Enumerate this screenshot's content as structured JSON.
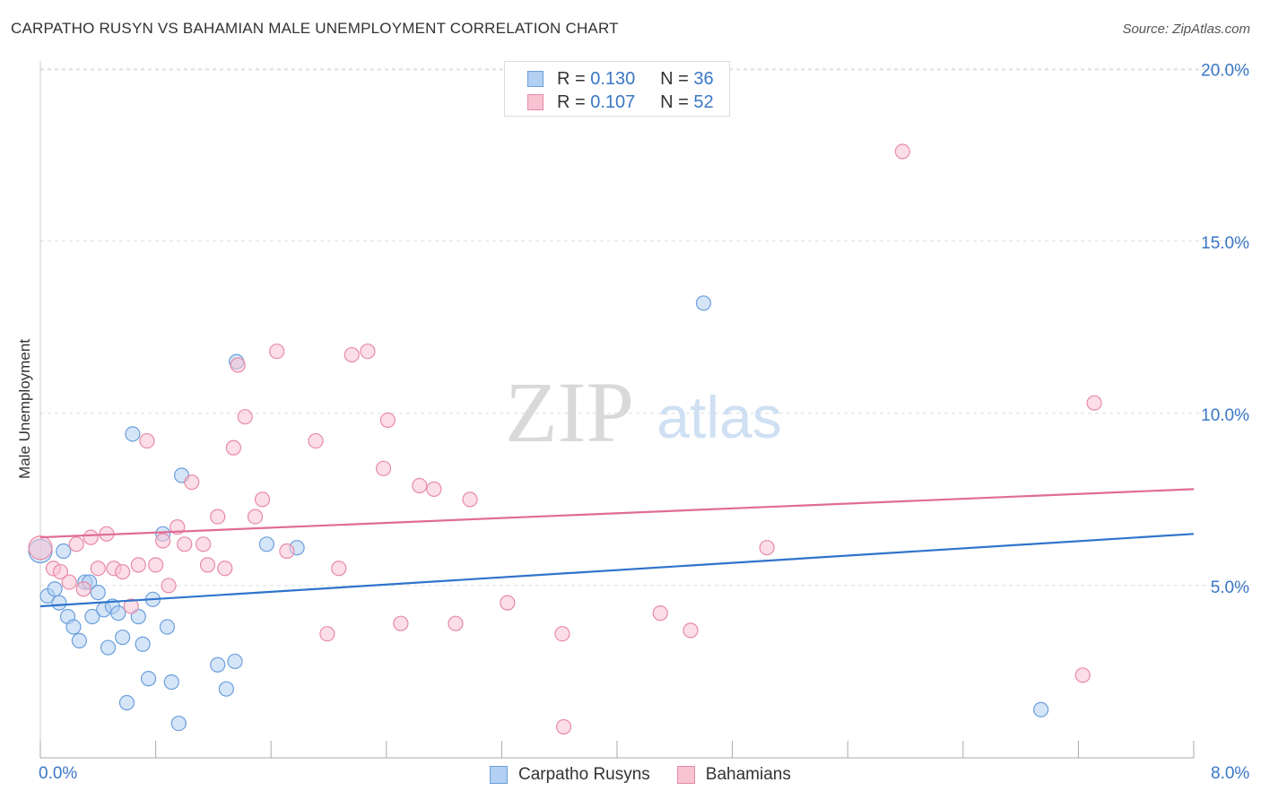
{
  "title": "CARPATHO RUSYN VS BAHAMIAN MALE UNEMPLOYMENT CORRELATION CHART",
  "source": "Source: ZipAtlas.com",
  "watermark": {
    "zip": "ZIP",
    "atlas": "atlas"
  },
  "legend_top": {
    "rows": [
      {
        "r_label": "R =",
        "r_value": "0.130",
        "n_label": "N =",
        "n_value": "36"
      },
      {
        "r_label": "R =",
        "r_value": "0.107",
        "n_label": "N =",
        "n_value": "52"
      }
    ]
  },
  "legend_bottom": [
    "Carpatho Rusyns",
    "Bahamians"
  ],
  "colors": {
    "blue_fill": "#b3cff2",
    "blue_stroke": "#6a9fdc",
    "blue_line": "#2f74cc",
    "pink_fill": "#f7c3d3",
    "pink_stroke": "#e88aa8",
    "pink_line": "#e06c96",
    "grid": "#dddddd",
    "axis_text": "#3a77c6"
  },
  "chart_data": {
    "type": "scatter",
    "title": "CARPATHO RUSYN VS BAHAMIAN MALE UNEMPLOYMENT CORRELATION CHART",
    "xlabel": "",
    "ylabel": "Male Unemployment",
    "xlim": [
      0,
      8
    ],
    "ylim": [
      0,
      20.5
    ],
    "x_tick_labels": [
      "0.0%",
      "8.0%"
    ],
    "y_ticks": [
      5,
      10,
      15,
      20
    ],
    "y_tick_labels": [
      "5.0%",
      "10.0%",
      "15.0%",
      "20.0%"
    ],
    "series": [
      {
        "name": "Carpatho Rusyns",
        "r": 0.13,
        "n": 36,
        "trend": {
          "x": [
            0,
            8
          ],
          "y": [
            4.4,
            6.5
          ]
        },
        "points": [
          {
            "x": 0.0,
            "y": 6.0,
            "big": true
          },
          {
            "x": 0.05,
            "y": 4.7
          },
          {
            "x": 0.1,
            "y": 4.9
          },
          {
            "x": 0.13,
            "y": 4.5
          },
          {
            "x": 0.16,
            "y": 6.0
          },
          {
            "x": 0.19,
            "y": 4.1
          },
          {
            "x": 0.23,
            "y": 3.8
          },
          {
            "x": 0.27,
            "y": 3.4
          },
          {
            "x": 0.31,
            "y": 5.1
          },
          {
            "x": 0.34,
            "y": 5.1
          },
          {
            "x": 0.36,
            "y": 4.1
          },
          {
            "x": 0.4,
            "y": 4.8
          },
          {
            "x": 0.44,
            "y": 4.3
          },
          {
            "x": 0.47,
            "y": 3.2
          },
          {
            "x": 0.5,
            "y": 4.4
          },
          {
            "x": 0.54,
            "y": 4.2
          },
          {
            "x": 0.57,
            "y": 3.5
          },
          {
            "x": 0.6,
            "y": 1.6
          },
          {
            "x": 0.64,
            "y": 9.4
          },
          {
            "x": 0.68,
            "y": 4.1
          },
          {
            "x": 0.71,
            "y": 3.3
          },
          {
            "x": 0.75,
            "y": 2.3
          },
          {
            "x": 0.78,
            "y": 4.6
          },
          {
            "x": 0.85,
            "y": 6.5
          },
          {
            "x": 0.88,
            "y": 3.8
          },
          {
            "x": 0.91,
            "y": 2.2
          },
          {
            "x": 0.96,
            "y": 1.0
          },
          {
            "x": 0.98,
            "y": 8.2
          },
          {
            "x": 1.23,
            "y": 2.7
          },
          {
            "x": 1.29,
            "y": 2.0
          },
          {
            "x": 1.35,
            "y": 2.8
          },
          {
            "x": 1.36,
            "y": 11.5
          },
          {
            "x": 1.57,
            "y": 6.2
          },
          {
            "x": 1.78,
            "y": 6.1
          },
          {
            "x": 4.6,
            "y": 13.2
          },
          {
            "x": 6.94,
            "y": 1.4
          }
        ]
      },
      {
        "name": "Bahamians",
        "r": 0.107,
        "n": 52,
        "trend": {
          "x": [
            0,
            8
          ],
          "y": [
            6.4,
            7.8
          ]
        },
        "points": [
          {
            "x": 0.0,
            "y": 6.1,
            "big": true
          },
          {
            "x": 0.09,
            "y": 5.5
          },
          {
            "x": 0.14,
            "y": 5.4
          },
          {
            "x": 0.2,
            "y": 5.1
          },
          {
            "x": 0.25,
            "y": 6.2
          },
          {
            "x": 0.3,
            "y": 4.9
          },
          {
            "x": 0.35,
            "y": 6.4
          },
          {
            "x": 0.4,
            "y": 5.5
          },
          {
            "x": 0.46,
            "y": 6.5
          },
          {
            "x": 0.51,
            "y": 5.5
          },
          {
            "x": 0.57,
            "y": 5.4
          },
          {
            "x": 0.63,
            "y": 4.4
          },
          {
            "x": 0.68,
            "y": 5.6
          },
          {
            "x": 0.74,
            "y": 9.2
          },
          {
            "x": 0.8,
            "y": 5.6
          },
          {
            "x": 0.85,
            "y": 6.3
          },
          {
            "x": 0.89,
            "y": 5.0
          },
          {
            "x": 0.95,
            "y": 6.7
          },
          {
            "x": 1.0,
            "y": 6.2
          },
          {
            "x": 1.05,
            "y": 8.0
          },
          {
            "x": 1.13,
            "y": 6.2
          },
          {
            "x": 1.16,
            "y": 5.6
          },
          {
            "x": 1.23,
            "y": 7.0
          },
          {
            "x": 1.28,
            "y": 5.5
          },
          {
            "x": 1.34,
            "y": 9.0
          },
          {
            "x": 1.37,
            "y": 11.4
          },
          {
            "x": 1.42,
            "y": 9.9
          },
          {
            "x": 1.49,
            "y": 7.0
          },
          {
            "x": 1.54,
            "y": 7.5
          },
          {
            "x": 1.64,
            "y": 11.8
          },
          {
            "x": 1.71,
            "y": 6.0
          },
          {
            "x": 1.91,
            "y": 9.2
          },
          {
            "x": 1.99,
            "y": 3.6
          },
          {
            "x": 2.07,
            "y": 5.5
          },
          {
            "x": 2.16,
            "y": 11.7
          },
          {
            "x": 2.27,
            "y": 11.8
          },
          {
            "x": 2.38,
            "y": 8.4
          },
          {
            "x": 2.41,
            "y": 9.8
          },
          {
            "x": 2.5,
            "y": 3.9
          },
          {
            "x": 2.63,
            "y": 7.9
          },
          {
            "x": 2.73,
            "y": 7.8
          },
          {
            "x": 2.88,
            "y": 3.9
          },
          {
            "x": 2.98,
            "y": 7.5
          },
          {
            "x": 3.24,
            "y": 4.5
          },
          {
            "x": 3.62,
            "y": 3.6
          },
          {
            "x": 3.63,
            "y": 0.9
          },
          {
            "x": 4.3,
            "y": 4.2
          },
          {
            "x": 4.51,
            "y": 3.7
          },
          {
            "x": 5.04,
            "y": 6.1
          },
          {
            "x": 5.98,
            "y": 17.6
          },
          {
            "x": 7.23,
            "y": 2.4
          },
          {
            "x": 7.31,
            "y": 10.3
          }
        ]
      }
    ]
  }
}
